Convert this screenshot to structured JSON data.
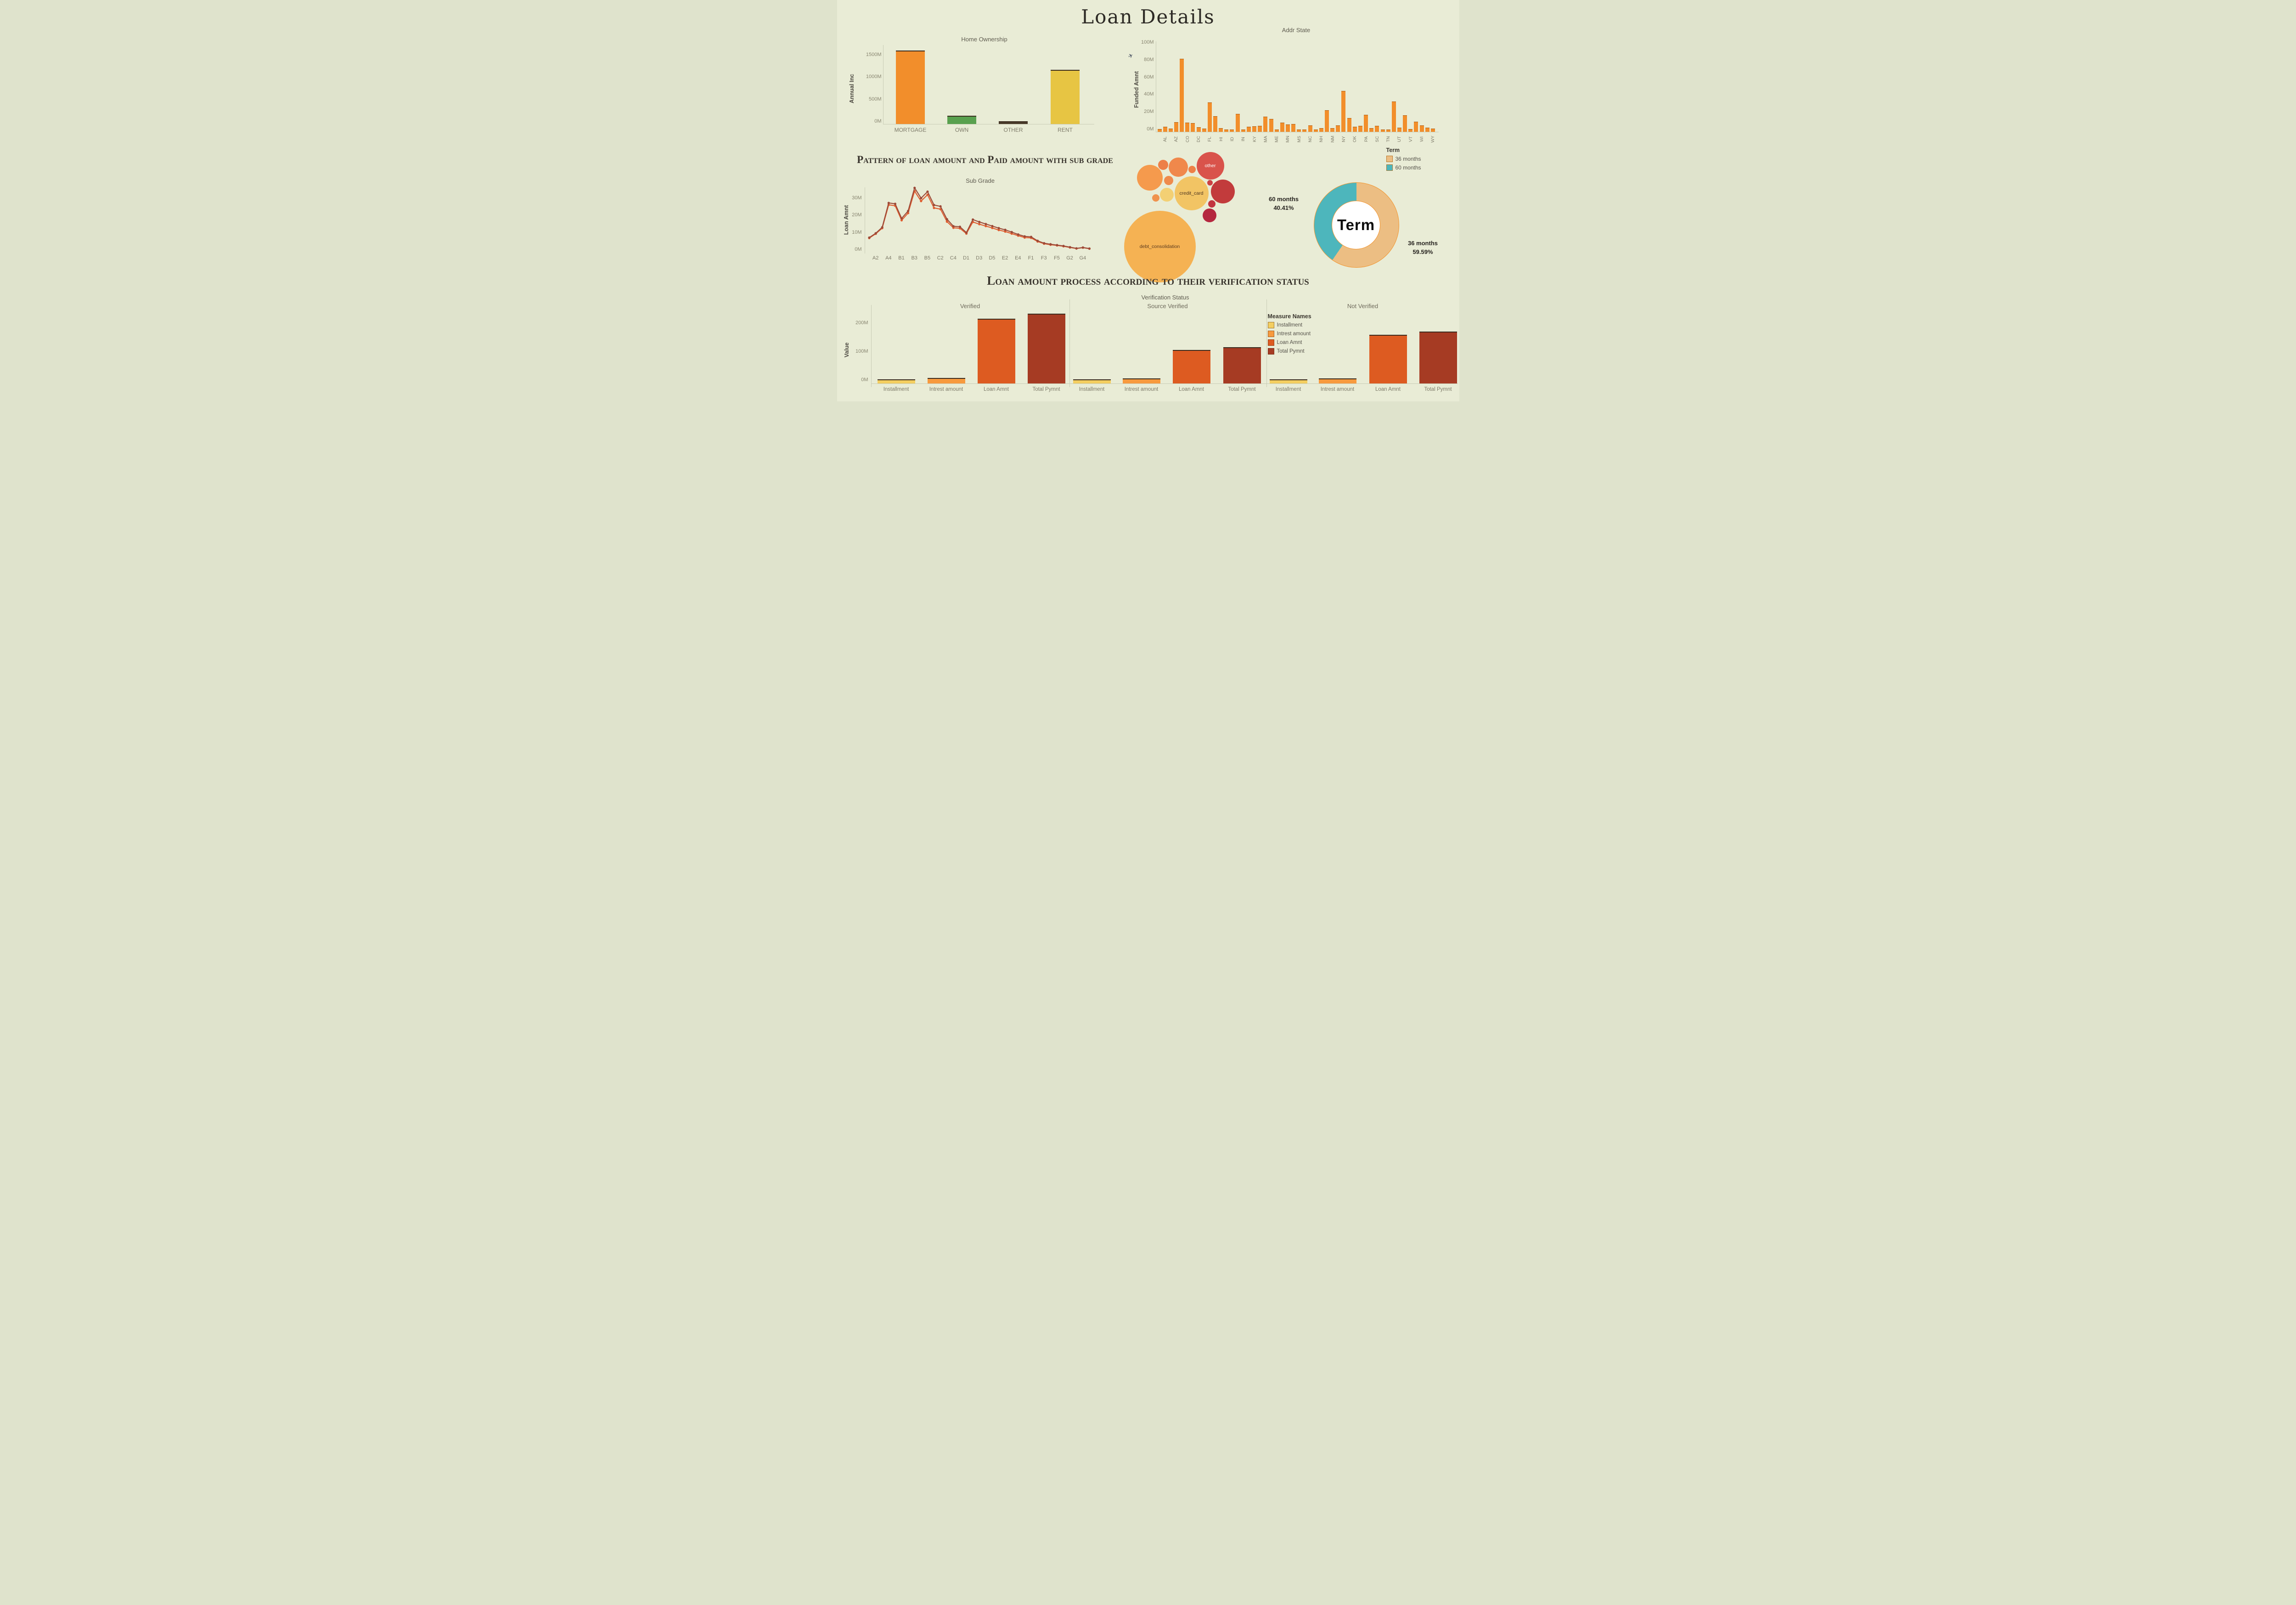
{
  "title": "Loan Details",
  "colors": {
    "background": "#E9ECD6",
    "accent_orange": "#F28E2B",
    "green": "#59A14F",
    "yellow": "#E7C543",
    "dark_bar_edge": "#3A2B1E",
    "donut_tan": "#ECBE83",
    "donut_teal": "#4DB6BC",
    "line_dark": "#9C4A38",
    "line_orange": "#DE5D30"
  },
  "chart_data": [
    {
      "id": "home_ownership",
      "type": "bar",
      "title": "Home Ownership",
      "ylabel": "Annual Inc",
      "unit": "M",
      "categories": [
        "MORTGAGE",
        "OWN",
        "OTHER",
        "RENT"
      ],
      "values": [
        1600,
        130,
        10,
        1160
      ],
      "bar_colors": [
        "#F28E2B",
        "#59A14F",
        "#4A3B2A",
        "#E7C543"
      ],
      "yticks": [
        0,
        500,
        1000,
        1500
      ],
      "ylim": [
        0,
        1700
      ],
      "grid": false
    },
    {
      "id": "addr_state",
      "type": "bar",
      "title": "Addr State",
      "ylabel": "Funded Amnt",
      "unit": "M",
      "bar_color": "#F28E2B",
      "yticks": [
        0,
        20,
        40,
        60,
        80,
        100
      ],
      "ylim": [
        0,
        100
      ],
      "categories": [
        "AK",
        "AL",
        "AR",
        "AZ",
        "CA",
        "CO",
        "CT",
        "DC",
        "DE",
        "FL",
        "GA",
        "HI",
        "IA",
        "ID",
        "IL",
        "IN",
        "KS",
        "KY",
        "LA",
        "MA",
        "MD",
        "ME",
        "MI",
        "MN",
        "MO",
        "MS",
        "MT",
        "NC",
        "NE",
        "NH",
        "NJ",
        "NM",
        "NV",
        "NY",
        "OH",
        "OK",
        "OR",
        "PA",
        "RI",
        "SC",
        "SD",
        "TN",
        "TX",
        "UT",
        "VA",
        "VT",
        "WA",
        "WI",
        "WV",
        "WY"
      ],
      "values": [
        0.8,
        3.5,
        1.8,
        9,
        82,
        8.5,
        8,
        3,
        1.5,
        32,
        16,
        2.2,
        0.5,
        0.4,
        18.5,
        0.5,
        3.5,
        4,
        4.8,
        15.5,
        12.5,
        0.4,
        8.5,
        6.5,
        7,
        0.5,
        0.3,
        5.5,
        0.4,
        2,
        23,
        2,
        5.5,
        45,
        14,
        3.5,
        4.8,
        17.5,
        2,
        5,
        0.5,
        0.4,
        33,
        2.8,
        17,
        0.8,
        9.5,
        5.5,
        2.5,
        1.8
      ],
      "shown_labels": [
        "AL",
        "AZ",
        "CO",
        "DC",
        "FL",
        "HI",
        "ID",
        "IN",
        "KY",
        "MA",
        "ME",
        "MN",
        "MS",
        "NC",
        "NH",
        "NM",
        "NY",
        "OK",
        "PA",
        "SC",
        "TN",
        "UT",
        "VT",
        "WI",
        "WY"
      ]
    },
    {
      "id": "sub_grade_lines",
      "type": "line",
      "title": "Pattern of loan amount and Paid amount with sub grade",
      "subtitle": "Sub Grade",
      "ylabel": "Loan Amnt",
      "unit": "M",
      "yticks": [
        0,
        10,
        20,
        30
      ],
      "ylim": [
        0,
        40
      ],
      "categories": [
        "A1",
        "A2",
        "A3",
        "A4",
        "A5",
        "B1",
        "B2",
        "B3",
        "B4",
        "B5",
        "C1",
        "C2",
        "C3",
        "C4",
        "C5",
        "D1",
        "D2",
        "D3",
        "D4",
        "D5",
        "E1",
        "E2",
        "E3",
        "E4",
        "E5",
        "F1",
        "F2",
        "F3",
        "F4",
        "F5",
        "G1",
        "G2",
        "G3",
        "G4",
        "G5"
      ],
      "xtick_labels": [
        "A2",
        "A4",
        "B1",
        "B3",
        "B5",
        "C2",
        "C4",
        "D1",
        "D3",
        "D5",
        "E2",
        "E4",
        "F1",
        "F3",
        "F5",
        "G2",
        "G4"
      ],
      "series": [
        {
          "name": "Loan Amnt",
          "color": "#9C4A38",
          "values": [
            8.5,
            11,
            14.5,
            28.7,
            28.2,
            19.7,
            24,
            37.5,
            31.5,
            35.3,
            27.5,
            26.7,
            19.2,
            15.1,
            14.8,
            11.4,
            19,
            17.6,
            16.4,
            15.2,
            14,
            13,
            11.7,
            10.3,
            9.2,
            8.9,
            6.6,
            5.2,
            4.6,
            4.1,
            3.6,
            2.9,
            2.2,
            2.7,
            2.1
          ]
        },
        {
          "name": "Paid Amount",
          "color": "#DE5D30",
          "values": [
            8.2,
            10.7,
            14,
            27.6,
            27.1,
            18.6,
            22.8,
            35.6,
            29.8,
            33.5,
            25.8,
            25.1,
            17.8,
            14.2,
            13.9,
            10.8,
            17.6,
            16.3,
            15.2,
            14.1,
            12.9,
            12,
            10.8,
            9.6,
            8.5,
            8.3,
            6.2,
            4.9,
            4.3,
            3.9,
            3.4,
            2.7,
            2.1,
            2.6,
            2
          ]
        }
      ]
    },
    {
      "id": "purpose_bubbles",
      "type": "bubble",
      "bubbles": [
        {
          "label": "debt_consolidation",
          "cx": 91,
          "cy": 219,
          "r": 78,
          "color": "#F5B253",
          "text_color": "#5b3a1e"
        },
        {
          "label": "credit_card",
          "cx": 160,
          "cy": 103,
          "r": 37,
          "color": "#F2C464",
          "text_color": "#4a3420"
        },
        {
          "label": "other",
          "cx": 201,
          "cy": 43,
          "r": 30,
          "color": "#D9534B",
          "text_color": "#ffffff"
        },
        {
          "label": "",
          "cx": 69,
          "cy": 69,
          "r": 28,
          "color": "#F59A4D"
        },
        {
          "label": "",
          "cx": 131,
          "cy": 46,
          "r": 21,
          "color": "#F0884B"
        },
        {
          "label": "",
          "cx": 98,
          "cy": 41,
          "r": 11,
          "color": "#ED7F47"
        },
        {
          "label": "",
          "cx": 110,
          "cy": 75,
          "r": 10,
          "color": "#EF8B4C"
        },
        {
          "label": "",
          "cx": 161,
          "cy": 51,
          "r": 8,
          "color": "#EE8046"
        },
        {
          "label": "",
          "cx": 106,
          "cy": 106,
          "r": 15,
          "color": "#F3D074"
        },
        {
          "label": "",
          "cx": 82,
          "cy": 113,
          "r": 8,
          "color": "#F0934E"
        },
        {
          "label": "",
          "cx": 228,
          "cy": 99,
          "r": 26,
          "color": "#C23B3C"
        },
        {
          "label": "",
          "cx": 199,
          "cy": 151,
          "r": 15,
          "color": "#B5273F"
        },
        {
          "label": "",
          "cx": 204,
          "cy": 126,
          "r": 8,
          "color": "#C23440"
        },
        {
          "label": "",
          "cx": 200,
          "cy": 80,
          "r": 6,
          "color": "#CC4043"
        }
      ]
    },
    {
      "id": "term_donut",
      "type": "pie",
      "center_label": "Term",
      "legend_title": "Term",
      "slices": [
        {
          "label": "36 months",
          "pct": 59.59,
          "color": "#ECBE83"
        },
        {
          "label": "60 months",
          "pct": 40.41,
          "color": "#4DB6BC"
        }
      ],
      "callout_left": [
        "60 months",
        "40.41%"
      ],
      "callout_right": [
        "36 months",
        "59.59%"
      ],
      "ring_border": "#F2952F"
    },
    {
      "id": "verification",
      "type": "bar",
      "title": "Loan amount process according to their verification status",
      "col_header": "Verification Status",
      "ylabel": "Value",
      "unit": "M",
      "yticks": [
        0,
        100,
        200
      ],
      "ylim": [
        0,
        250
      ],
      "categories": [
        "Installment",
        "Intrest amount",
        "Loan Amnt",
        "Total Pymnt"
      ],
      "bar_colors": [
        "#F3CE60",
        "#F79A3E",
        "#DD5B21",
        "#A63B23"
      ],
      "panels": [
        {
          "label": "Verified",
          "values": [
            2,
            7,
            215,
            232
          ]
        },
        {
          "label": "Source Verified",
          "values": [
            1.5,
            4.5,
            105,
            114
          ]
        },
        {
          "label": "Not Verified",
          "values": [
            2,
            5,
            158,
            170
          ]
        }
      ],
      "legend_title": "Measure Names"
    }
  ]
}
